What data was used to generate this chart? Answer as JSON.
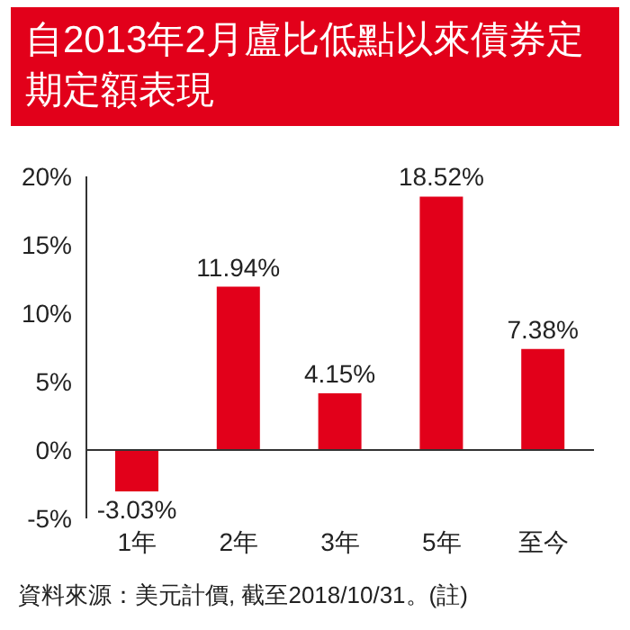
{
  "chart_data": {
    "type": "bar",
    "title": "自2013年2月盧比低點以來債券定期定額表現",
    "categories": [
      "1年",
      "2年",
      "3年",
      "5年",
      "至今"
    ],
    "values": [
      -3.03,
      11.94,
      4.15,
      18.52,
      7.38
    ],
    "value_labels": [
      "-3.03%",
      "11.94%",
      "4.15%",
      "18.52%",
      "7.38%"
    ],
    "color": "#e2001a",
    "ylim": [
      -5,
      20
    ],
    "yticks": [
      {
        "value": -5,
        "label": "-5%"
      },
      {
        "value": 0,
        "label": "0%"
      },
      {
        "value": 5,
        "label": "5%"
      },
      {
        "value": 10,
        "label": "10%"
      },
      {
        "value": 15,
        "label": "15%"
      },
      {
        "value": 20,
        "label": "20%"
      }
    ],
    "annotations": [
      "資料來源：美元計價, 截至2018/10/31。(註)"
    ],
    "legend": false
  }
}
